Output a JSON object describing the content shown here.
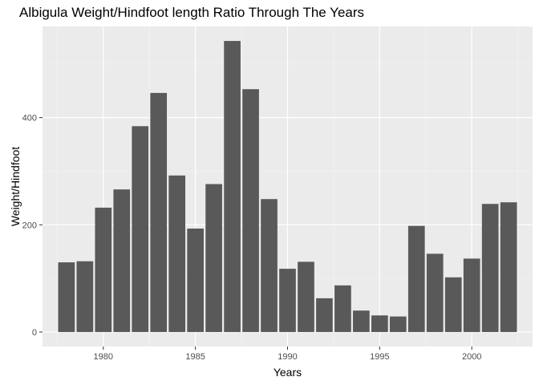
{
  "chart_data": {
    "type": "bar",
    "title": "Albigula Weight/Hindfoot length Ratio Through The Years",
    "xlabel": "Years",
    "ylabel": "Weight/Hindfoot",
    "x": [
      1978,
      1979,
      1980,
      1981,
      1982,
      1983,
      1984,
      1985,
      1986,
      1987,
      1988,
      1989,
      1990,
      1991,
      1992,
      1993,
      1994,
      1995,
      1996,
      1997,
      1998,
      1999,
      2000,
      2001,
      2002
    ],
    "values": [
      130,
      132,
      232,
      266,
      384,
      446,
      292,
      193,
      276,
      543,
      453,
      248,
      118,
      131,
      63,
      87,
      40,
      31,
      29,
      198,
      146,
      102,
      137,
      239,
      242
    ],
    "xlim": [
      1976.7,
      2003.3
    ],
    "ylim": [
      -27,
      570
    ],
    "x_ticks": [
      1980,
      1985,
      1990,
      1995,
      2000
    ],
    "y_ticks": [
      0,
      200,
      400
    ],
    "grid": true,
    "colors": {
      "bar": "#595959",
      "panel": "#ebebeb",
      "grid_major": "#ffffff",
      "tick": "#333333"
    }
  }
}
